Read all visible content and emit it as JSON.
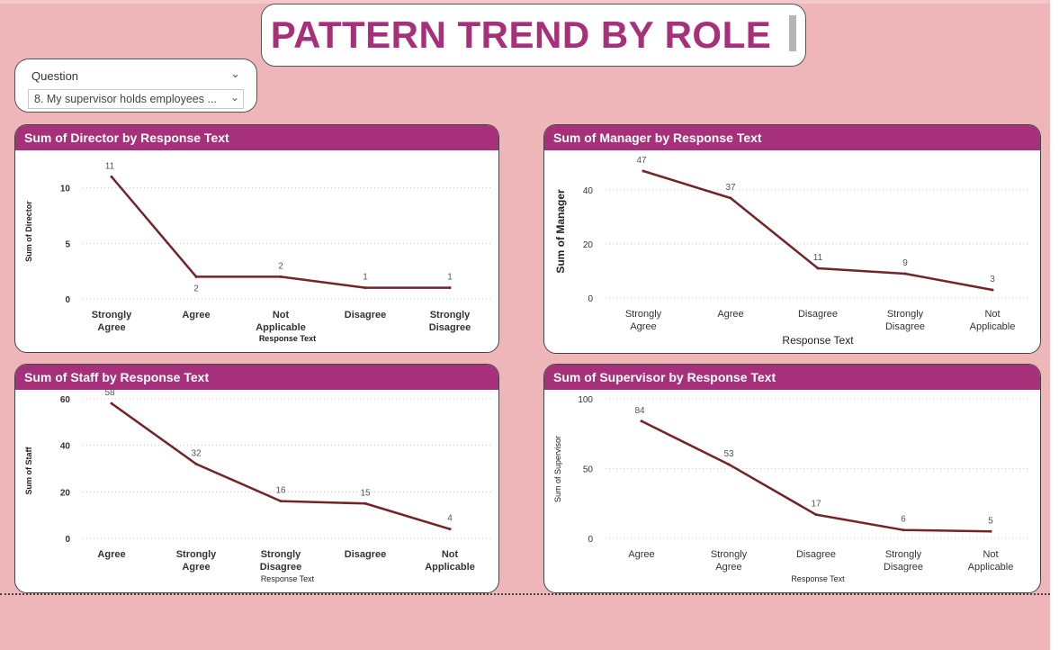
{
  "page": {
    "title": "PATTERN TREND BY ROLE"
  },
  "slicer": {
    "label": "Question",
    "selected": "8. My supervisor holds employees ..."
  },
  "colors": {
    "background": "#efb6b9",
    "accent": "#a6307a",
    "line": "#722429"
  },
  "chart_data": [
    {
      "type": "line",
      "title": "Sum of Director by Response Text",
      "xlabel": "Response Text",
      "ylabel": "Sum of Director",
      "categories": [
        "Strongly Agree",
        "Agree",
        "Not Applicable",
        "Disagree",
        "Strongly Disagree"
      ],
      "values": [
        11,
        2,
        2,
        1,
        1
      ],
      "data_labels": [
        "11",
        "2",
        "2",
        "1",
        "1"
      ],
      "yticks": [
        0,
        5,
        10
      ],
      "ylim": [
        0,
        12
      ],
      "grid": true
    },
    {
      "type": "line",
      "title": "Sum of Manager by Response Text",
      "xlabel": "Response Text",
      "ylabel": "Sum of Manager",
      "categories": [
        "Strongly Agree",
        "Agree",
        "Disagree",
        "Strongly Disagree",
        "Not Applicable"
      ],
      "values": [
        47,
        37,
        11,
        9,
        3
      ],
      "data_labels": [
        "47",
        "37",
        "11",
        "9",
        "3"
      ],
      "yticks": [
        0,
        20,
        40
      ],
      "ylim": [
        0,
        50
      ],
      "grid": true
    },
    {
      "type": "line",
      "title": "Sum of Staff by Response Text",
      "xlabel": "Response Text",
      "ylabel": "Sum of Staff",
      "categories": [
        "Agree",
        "Strongly Agree",
        "Strongly Disagree",
        "Disagree",
        "Not Applicable"
      ],
      "values": [
        58,
        32,
        16,
        15,
        4
      ],
      "data_labels": [
        "58",
        "32",
        "16",
        "15",
        "4"
      ],
      "yticks": [
        0,
        20,
        40,
        60
      ],
      "ylim": [
        0,
        60
      ],
      "grid": true
    },
    {
      "type": "line",
      "title": "Sum of Supervisor by Response Text",
      "xlabel": "Response Text",
      "ylabel": "Sum of Supervisor",
      "categories": [
        "Agree",
        "Strongly Agree",
        "Disagree",
        "Strongly Disagree",
        "Not Applicable"
      ],
      "values": [
        84,
        53,
        17,
        6,
        5
      ],
      "data_labels": [
        "84",
        "53",
        "17",
        "6",
        "5"
      ],
      "yticks": [
        0,
        50,
        100
      ],
      "ylim": [
        0,
        100
      ],
      "grid": true
    }
  ]
}
